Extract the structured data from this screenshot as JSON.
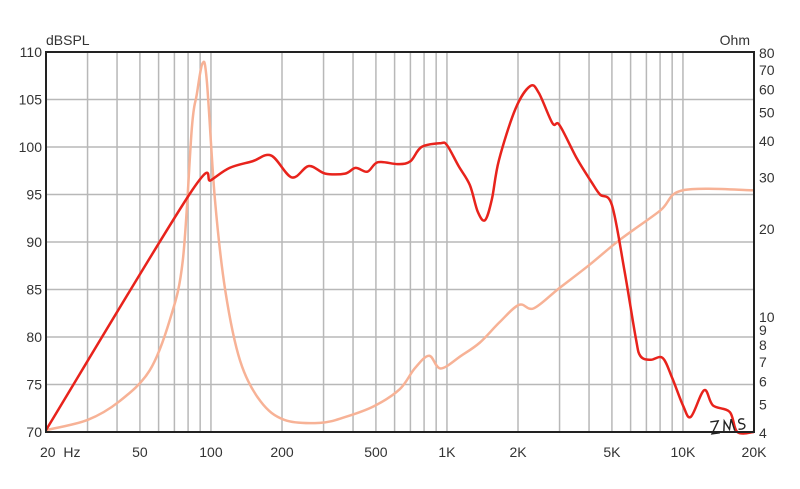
{
  "chart_data": {
    "type": "line",
    "xscale": "log",
    "xlim": [
      20,
      20000
    ],
    "ylim": [
      70,
      110
    ],
    "y2scale": "log",
    "y2lim": [
      4,
      80
    ],
    "grid": true,
    "ylabel": "dBSPL",
    "y2label": "Ohm",
    "x_ticks": [
      {
        "value": 20,
        "label": "20  Hz"
      },
      {
        "value": 50,
        "label": "50"
      },
      {
        "value": 100,
        "label": "100"
      },
      {
        "value": 200,
        "label": "200"
      },
      {
        "value": 500,
        "label": "500"
      },
      {
        "value": 1000,
        "label": "1K"
      },
      {
        "value": 2000,
        "label": "2K"
      },
      {
        "value": 5000,
        "label": "5K"
      },
      {
        "value": 10000,
        "label": "10K"
      },
      {
        "value": 20000,
        "label": "20K"
      }
    ],
    "y_ticks": [
      70,
      75,
      80,
      85,
      90,
      95,
      100,
      105,
      110
    ],
    "y2_ticks": [
      4,
      5,
      6,
      7,
      8,
      9,
      10,
      20,
      30,
      40,
      50,
      60,
      70,
      80
    ],
    "logo_text": "ZMS",
    "colors": {
      "spl": "#e8231c",
      "impedance": "#f7b296",
      "grid": "#b8b8b8",
      "frame": "#222222"
    },
    "series": [
      {
        "axis": "left",
        "points": [
          [
            20,
            70.2
          ],
          [
            81,
            95
          ],
          [
            100,
            96.5
          ],
          [
            120,
            97.8
          ],
          [
            150,
            98.5
          ],
          [
            180,
            99.1
          ],
          [
            220,
            96.8
          ],
          [
            260,
            98
          ],
          [
            305,
            97.2
          ],
          [
            370,
            97.2
          ],
          [
            410,
            97.8
          ],
          [
            460,
            97.4
          ],
          [
            510,
            98.4
          ],
          [
            620,
            98.2
          ],
          [
            700,
            98.5
          ],
          [
            780,
            100
          ],
          [
            940,
            100.4
          ],
          [
            1000,
            100.2
          ],
          [
            1120,
            98
          ],
          [
            1250,
            96
          ],
          [
            1350,
            93.2
          ],
          [
            1450,
            92.3
          ],
          [
            1550,
            94.5
          ],
          [
            1660,
            98.6
          ],
          [
            1950,
            104
          ],
          [
            2250,
            106.4
          ],
          [
            2450,
            105.7
          ],
          [
            2800,
            102.5
          ],
          [
            3000,
            102.3
          ],
          [
            3550,
            98.8
          ],
          [
            4100,
            96.3
          ],
          [
            4450,
            95
          ],
          [
            5000,
            93.9
          ],
          [
            5650,
            87
          ],
          [
            6300,
            80
          ],
          [
            6600,
            78
          ],
          [
            7300,
            77.6
          ],
          [
            8200,
            77.8
          ],
          [
            9000,
            75.7
          ],
          [
            10000,
            72.8
          ],
          [
            10800,
            71.6
          ],
          [
            12300,
            74.4
          ],
          [
            13400,
            72.8
          ],
          [
            15800,
            72.1
          ],
          [
            17000,
            70
          ],
          [
            20000,
            70
          ]
        ]
      },
      {
        "axis": "right",
        "points": [
          [
            20,
            4.06
          ],
          [
            30,
            4.4
          ],
          [
            41,
            5.1
          ],
          [
            55,
            6.5
          ],
          [
            67,
            9.7
          ],
          [
            76,
            15.5
          ],
          [
            83,
            44
          ],
          [
            87,
            57
          ],
          [
            92,
            73
          ],
          [
            96,
            64
          ],
          [
            104,
            24.9
          ],
          [
            115,
            12.2
          ],
          [
            133,
            7
          ],
          [
            162,
            5.1
          ],
          [
            205,
            4.4
          ],
          [
            290,
            4.3
          ],
          [
            370,
            4.5
          ],
          [
            490,
            4.9
          ],
          [
            630,
            5.6
          ],
          [
            730,
            6.6
          ],
          [
            840,
            7.3
          ],
          [
            940,
            6.6
          ],
          [
            1150,
            7.3
          ],
          [
            1380,
            8.1
          ],
          [
            1670,
            9.5
          ],
          [
            2020,
            10.9
          ],
          [
            2330,
            10.6
          ],
          [
            2980,
            12.4
          ],
          [
            4000,
            14.9
          ],
          [
            5400,
            18.2
          ],
          [
            8000,
            22.9
          ],
          [
            10000,
            26.9
          ],
          [
            20000,
            26.9
          ]
        ]
      }
    ]
  }
}
